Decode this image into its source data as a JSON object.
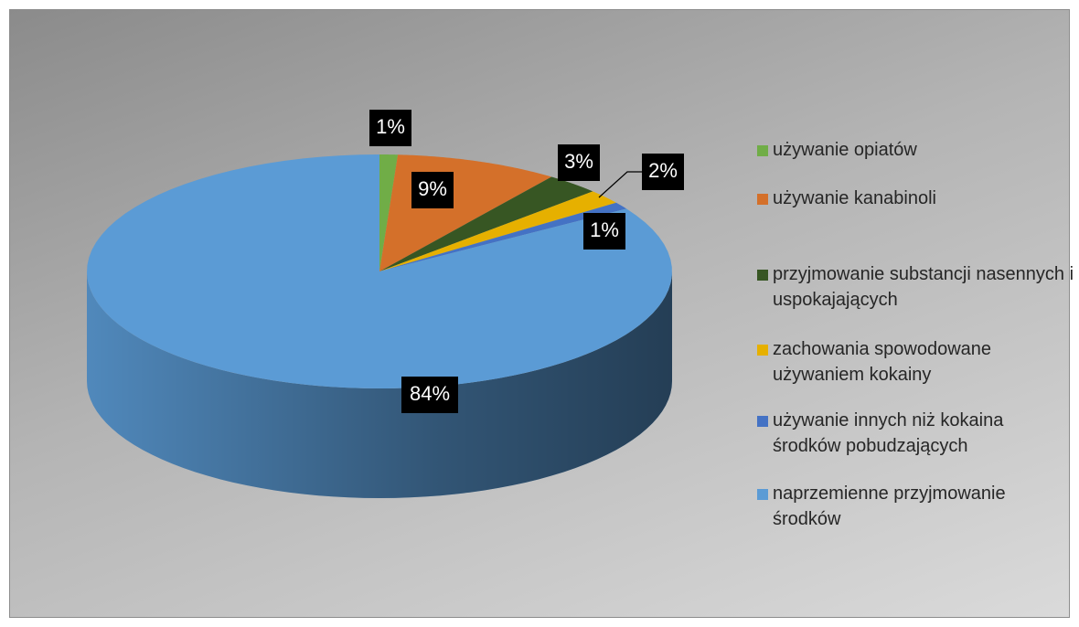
{
  "chart_data": {
    "type": "pie",
    "categories": [
      "używanie opiatów",
      "używanie kanabinoli",
      "przyjmowanie substancji nasennych i uspokajających",
      "zachowania spowodowane używaniem kokainy",
      "używanie innych niż kokaina środków pobudzających",
      "naprzemienne przyjmowanie środków"
    ],
    "values": [
      1,
      9,
      3,
      2,
      1,
      84
    ],
    "value_labels": [
      "1%",
      "9%",
      "3%",
      "2%",
      "1%",
      "84%"
    ],
    "colors": [
      "#70ad47",
      "#d4702a",
      "#375623",
      "#e6b000",
      "#4472c4",
      "#5b9bd5"
    ],
    "legend": "right"
  }
}
